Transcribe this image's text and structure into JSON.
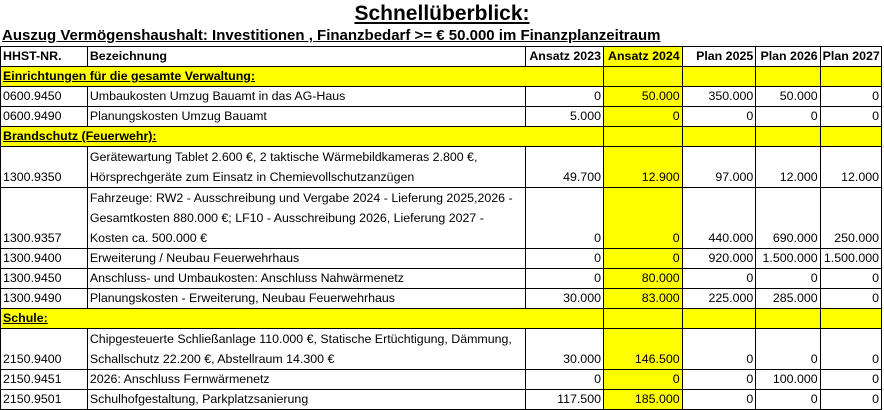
{
  "title": "Schnellüberblick:",
  "subtitle": "Auszug Vermögenshaushalt: Investitionen , Finanzbedarf >= € 50.000 im Finanzplanzeitraum",
  "headers": [
    "HHST-NR.",
    "Bezeichnung",
    "Ansatz 2023",
    "Ansatz 2024",
    "Plan 2025",
    "Plan 2026",
    "Plan 2027"
  ],
  "sections": [
    {
      "label": "Einrichtungen für die gesamte Verwaltung:",
      "rows": [
        {
          "nr": "0600.9450",
          "desc": "Umbaukosten Umzug Bauamt in das AG-Haus",
          "a2023": "0",
          "a2024": "50.000",
          "p2025": "350.000",
          "p2026": "50.000",
          "p2027": "0"
        },
        {
          "nr": "0600.9490",
          "desc": "Planungskosten Umzug Bauamt",
          "a2023": "5.000",
          "a2024": "0",
          "p2025": "0",
          "p2026": "0",
          "p2027": "0"
        }
      ]
    },
    {
      "label": "Brandschutz (Feuerwehr):",
      "rows": [
        {
          "nr": "1300.9350",
          "desc": "Gerätewartung Tablet 2.600 €, 2 taktische Wärmebildkameras 2.800 €, Hörsprechgeräte zum Einsatz in Chemievollschutzanzügen",
          "a2023": "49.700",
          "a2024": "12.900",
          "p2025": "97.000",
          "p2026": "12.000",
          "p2027": "12.000"
        },
        {
          "nr": "1300.9357",
          "desc": "Fahrzeuge: RW2 - Ausschreibung und Vergabe 2024 - Lieferung 2025,2026 - Gesamtkosten 880.000 €; LF10 - Ausschreibung 2026, Lieferung 2027 - Kosten ca. 500.000 €",
          "a2023": "0",
          "a2024": "0",
          "p2025": "440.000",
          "p2026": "690.000",
          "p2027": "250.000"
        },
        {
          "nr": "1300.9400",
          "desc": "Erweiterung / Neubau Feuerwehrhaus",
          "a2023": "0",
          "a2024": "0",
          "p2025": "920.000",
          "p2026": "1.500.000",
          "p2027": "1.500.000"
        },
        {
          "nr": "1300.9450",
          "desc": "Anschluss- und Umbaukosten: Anschluss Nahwärmenetz",
          "a2023": "0",
          "a2024": "80.000",
          "p2025": "0",
          "p2026": "0",
          "p2027": "0"
        },
        {
          "nr": "1300.9490",
          "desc": "Planungskosten - Erweiterung, Neubau Feuerwehrhaus",
          "a2023": "30.000",
          "a2024": "83.000",
          "p2025": "225.000",
          "p2026": "285.000",
          "p2027": "0"
        }
      ]
    },
    {
      "label": "Schule:",
      "rows": [
        {
          "nr": "2150.9400",
          "desc": "Chipgesteuerte Schließanlage 110.000 €, Statische Ertüchtigung, Dämmung, Schallschutz 22.200 €, Abstellraum 14.300 €",
          "a2023": "30.000",
          "a2024": "146.500",
          "p2025": "0",
          "p2026": "0",
          "p2027": "0"
        },
        {
          "nr": "2150.9451",
          "desc": "2026: Anschluss Fernwärmenetz",
          "a2023": "0",
          "a2024": "0",
          "p2025": "0",
          "p2026": "100.000",
          "p2027": "0"
        },
        {
          "nr": "2150.9501",
          "desc": "Schulhofgestaltung, Parkplatzsanierung",
          "a2023": "117.500",
          "a2024": "185.000",
          "p2025": "0",
          "p2026": "0",
          "p2027": "0"
        }
      ]
    }
  ],
  "colors": {
    "highlight": "#ffff00",
    "border": "#000000"
  }
}
